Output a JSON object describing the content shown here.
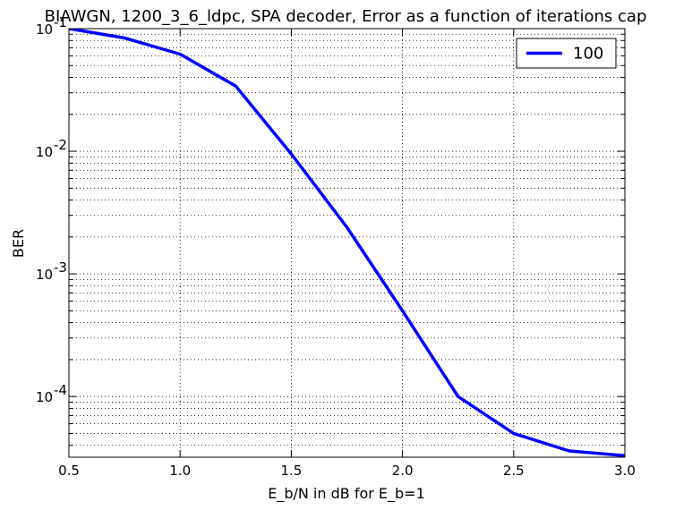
{
  "chart_data": {
    "type": "line",
    "title": "BIAWGN, 1200_3_6_ldpc, SPA decoder, Error as a function of iterations cap",
    "xlabel": "E_b/N in dB for E_b=1",
    "ylabel": "BER",
    "xlim": [
      0.5,
      3.0
    ],
    "ylim": [
      3.2e-05,
      0.1
    ],
    "yscale": "log",
    "grid": true,
    "legend_position": "top-right",
    "x_ticks": [
      "0.5",
      "1.0",
      "1.5",
      "2.0",
      "2.5",
      "3.0"
    ],
    "y_ticks": [
      {
        "base": "10",
        "exp": "-1"
      },
      {
        "base": "10",
        "exp": "-2"
      },
      {
        "base": "10",
        "exp": "-3"
      },
      {
        "base": "10",
        "exp": "-4"
      }
    ],
    "series": [
      {
        "name": "100",
        "color": "#0000ff",
        "x": [
          0.5,
          0.75,
          1.0,
          1.25,
          1.5,
          1.75,
          2.0,
          2.25,
          2.5,
          2.75,
          3.0
        ],
        "y": [
          0.1,
          0.084,
          0.062,
          0.034,
          0.0095,
          0.0024,
          0.0005,
          0.0001,
          5e-05,
          3.6e-05,
          3.3e-05
        ]
      }
    ]
  }
}
